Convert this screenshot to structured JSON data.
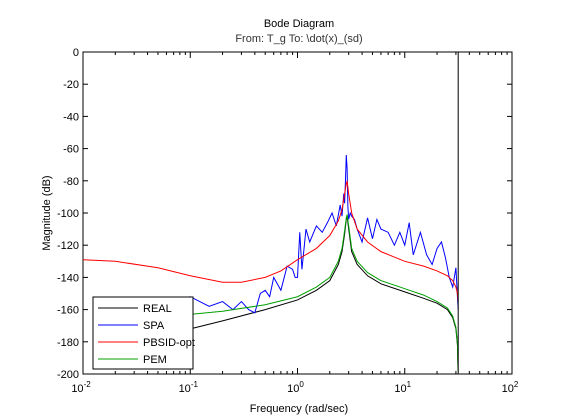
{
  "chart_data": {
    "type": "line",
    "title": "Bode Diagram",
    "subtitle": "From: T_g  To: \\dot(x)_(sd)",
    "xlabel": "Frequency  (rad/sec)",
    "ylabel": "Magnitude (dB)",
    "xscale": "log",
    "xlim": [
      0.01,
      100
    ],
    "ylim": [
      -200,
      0
    ],
    "yticks": [
      "0",
      "-20",
      "-40",
      "-60",
      "-80",
      "-100",
      "-120",
      "-140",
      "-160",
      "-180",
      "-200"
    ],
    "xticks": [
      {
        "base": "10",
        "exp": "-2"
      },
      {
        "base": "10",
        "exp": "-1"
      },
      {
        "base": "10",
        "exp": "0"
      },
      {
        "base": "10",
        "exp": "1"
      },
      {
        "base": "10",
        "exp": "2"
      }
    ],
    "grid": false,
    "legend_position": "bottom-left",
    "vertical_line_x": 31.5,
    "series": [
      {
        "name": "REAL",
        "color": "#000000",
        "x": [
          0.06,
          0.1,
          0.2,
          0.5,
          1,
          1.5,
          2,
          2.4,
          2.6,
          2.75,
          2.85,
          2.9,
          3.0,
          3.2,
          3.6,
          4.5,
          6,
          10,
          15,
          20,
          25,
          28,
          30,
          31,
          31.4
        ],
        "y": [
          -176,
          -172,
          -167,
          -160,
          -154,
          -148,
          -142,
          -132,
          -124,
          -113,
          -104,
          -102,
          -110,
          -124,
          -132,
          -139,
          -144,
          -149,
          -153,
          -156,
          -160,
          -165,
          -172,
          -182,
          -198
        ]
      },
      {
        "name": "SPA",
        "color": "#0000ff",
        "x": [
          0.06,
          0.1,
          0.15,
          0.2,
          0.25,
          0.3,
          0.35,
          0.4,
          0.42,
          0.45,
          0.5,
          0.55,
          0.6,
          0.7,
          0.8,
          0.9,
          0.95,
          1.0,
          1.05,
          1.1,
          1.2,
          1.3,
          1.5,
          1.7,
          1.9,
          2.1,
          2.3,
          2.5,
          2.6,
          2.7,
          2.75,
          2.8,
          2.85,
          2.9,
          2.95,
          3.0,
          3.1,
          3.2,
          3.4,
          3.6,
          4,
          4.5,
          5,
          5.5,
          6,
          7,
          8,
          9,
          10,
          11,
          12,
          14,
          16,
          18,
          20,
          22,
          24,
          26,
          28,
          30,
          31,
          31.5
        ],
        "y": [
          -155,
          -152,
          -158,
          -155,
          -160,
          -155,
          -160,
          -162,
          -157,
          -150,
          -148,
          -152,
          -140,
          -148,
          -133,
          -135,
          -140,
          -140,
          -112,
          -135,
          -110,
          -118,
          -108,
          -112,
          -106,
          -100,
          -108,
          -95,
          -102,
          -88,
          -94,
          -80,
          -64,
          -72,
          -96,
          -104,
          -100,
          -102,
          -104,
          -110,
          -118,
          -103,
          -116,
          -104,
          -110,
          -112,
          -120,
          -112,
          -120,
          -106,
          -126,
          -112,
          -126,
          -132,
          -122,
          -118,
          -128,
          -140,
          -146,
          -134,
          -152,
          -160
        ]
      },
      {
        "name": "PBSID-opt",
        "color": "#ff0000",
        "x": [
          0.01,
          0.02,
          0.05,
          0.1,
          0.2,
          0.3,
          0.5,
          0.7,
          1,
          1.5,
          2,
          2.4,
          2.6,
          2.75,
          2.85,
          2.9,
          3.0,
          3.2,
          3.6,
          4.5,
          6,
          10,
          15,
          20,
          25,
          28,
          30,
          31,
          31.5
        ],
        "y": [
          -129,
          -130,
          -134,
          -139,
          -143,
          -143,
          -140,
          -136,
          -129,
          -122,
          -114,
          -105,
          -98,
          -88,
          -82,
          -80,
          -88,
          -100,
          -110,
          -118,
          -124,
          -130,
          -133,
          -136,
          -139,
          -142,
          -146,
          -150,
          -155
        ]
      },
      {
        "name": "PEM",
        "color": "#00a000",
        "x": [
          0.06,
          0.1,
          0.2,
          0.5,
          1,
          1.5,
          2,
          2.4,
          2.6,
          2.75,
          2.85,
          2.9,
          3.0,
          3.2,
          3.6,
          4.5,
          6,
          10,
          15,
          20,
          25,
          28,
          30,
          31,
          31.4
        ],
        "y": [
          -164,
          -163,
          -161,
          -157,
          -152,
          -146,
          -140,
          -130,
          -122,
          -111,
          -103,
          -101,
          -108,
          -122,
          -130,
          -137,
          -142,
          -147,
          -151,
          -155,
          -159,
          -164,
          -171,
          -181,
          -198
        ]
      }
    ]
  }
}
